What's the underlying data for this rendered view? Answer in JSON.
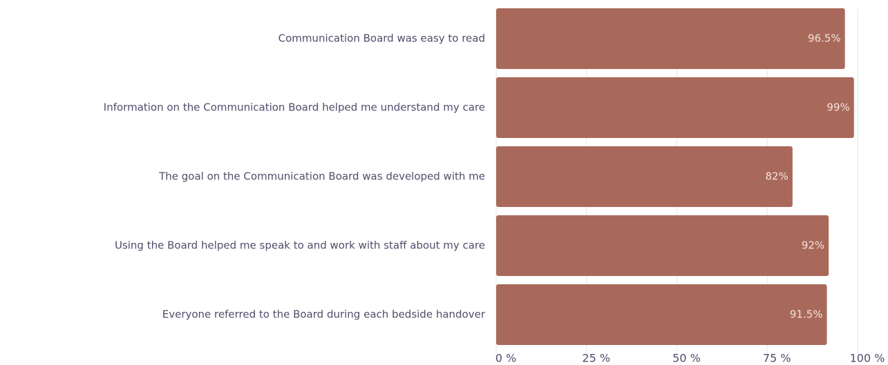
{
  "chart_data": {
    "type": "bar",
    "orientation": "horizontal",
    "categories": [
      "Communication Board was easy to read",
      "Information on the Communication Board helped me understand my care",
      "The goal on the Communication Board was developed with me",
      "Using the Board helped me speak to and work with staff about my care",
      "Everyone referred to the Board during each bedside handover"
    ],
    "values": [
      96.5,
      99,
      82,
      92,
      91.5
    ],
    "value_labels": [
      "96.5%",
      "99%",
      "82%",
      "92%",
      "91.5%"
    ],
    "color": "#a9695a",
    "xlim": [
      0,
      100
    ],
    "xticks": [
      {
        "value": 0,
        "label": "0 %"
      },
      {
        "value": 25,
        "label": "25 %"
      },
      {
        "value": 50,
        "label": "50 %"
      },
      {
        "value": 75,
        "label": "75 %"
      },
      {
        "value": 100,
        "label": "100 %"
      }
    ],
    "grid": true
  }
}
